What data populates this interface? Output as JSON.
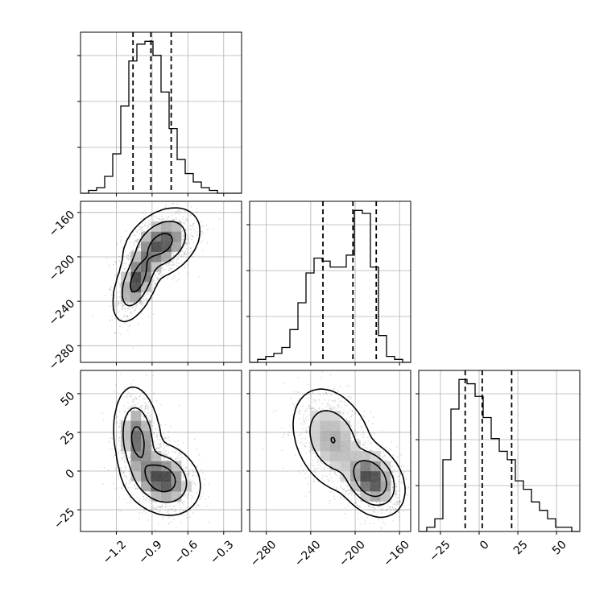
{
  "chart_data": {
    "type": "corner",
    "parameters": [
      {
        "name": "",
        "range": [
          -1.5,
          -0.15
        ],
        "ticks": [
          -1.2,
          -0.9,
          -0.6,
          -0.3
        ],
        "quantiles": [
          -1.06,
          -0.91,
          -0.74
        ]
      },
      {
        "name": "",
        "range": [
          -295,
          -150
        ],
        "ticks": [
          -280,
          -240,
          -200,
          -160
        ],
        "quantiles": [
          -229,
          -202,
          -181
        ]
      },
      {
        "name": "",
        "range": [
          -39,
          65
        ],
        "ticks": [
          -25,
          0,
          25,
          50
        ],
        "quantiles": [
          -9,
          2,
          21
        ]
      }
    ],
    "histograms": [
      {
        "param": 0,
        "bin_start": -1.5,
        "bin_width": 0.0675,
        "counts": [
          0,
          1,
          2,
          6,
          14,
          31,
          47,
          53,
          54,
          49,
          36,
          23,
          12,
          7,
          4,
          2,
          1,
          0,
          0,
          0
        ]
      },
      {
        "param": 1,
        "bin_start": -295,
        "bin_width": 7.25,
        "counts": [
          0,
          1,
          2,
          3,
          5,
          11,
          20,
          30,
          35,
          34,
          32,
          32,
          36,
          51,
          50,
          32,
          9,
          2,
          1,
          0
        ]
      },
      {
        "param": 2,
        "bin_start": -39,
        "bin_width": 5.2,
        "counts": [
          0,
          1,
          3,
          17,
          29,
          36,
          35,
          32,
          27,
          22,
          19,
          17,
          12,
          10,
          7,
          5,
          3,
          1,
          1,
          0
        ]
      }
    ],
    "panels_2d": [
      {
        "x_param": 0,
        "y_param": 1,
        "clusters": [
          {
            "mean": [
              -1.02,
              -220
            ],
            "sd": [
              0.07,
              13
            ],
            "corr": 0.55,
            "weight": 0.42
          },
          {
            "mean": [
              -0.82,
              -188
            ],
            "sd": [
              0.11,
              11
            ],
            "corr": 0.35,
            "weight": 0.58
          }
        ],
        "contour_levels": [
          0.39,
          0.86,
          0.99
        ]
      },
      {
        "x_param": 0,
        "y_param": 2,
        "clusters": [
          {
            "mean": [
              -1.02,
              20
            ],
            "sd": [
              0.07,
              12
            ],
            "corr": -0.2,
            "weight": 0.42
          },
          {
            "mean": [
              -0.82,
              -5
            ],
            "sd": [
              0.11,
              8
            ],
            "corr": -0.2,
            "weight": 0.58
          }
        ],
        "contour_levels": [
          0.39,
          0.86,
          0.99
        ]
      },
      {
        "x_param": 1,
        "y_param": 2,
        "clusters": [
          {
            "mean": [
              -220,
              20
            ],
            "sd": [
              13,
              12
            ],
            "corr": -0.3,
            "weight": 0.42
          },
          {
            "mean": [
              -186,
              -5
            ],
            "sd": [
              10,
              8
            ],
            "corr": -0.3,
            "weight": 0.58
          }
        ],
        "contour_levels": [
          0.39,
          0.86,
          0.99
        ]
      }
    ],
    "grid": true,
    "legend": "none"
  }
}
